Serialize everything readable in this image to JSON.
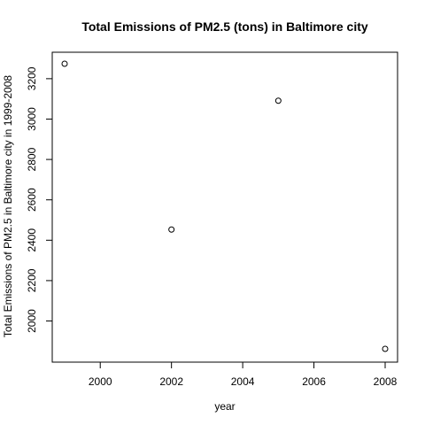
{
  "chart_data": {
    "type": "scatter",
    "title": "Total Emissions of PM2.5 (tons) in Baltimore city",
    "xlabel": "year",
    "ylabel": "Total Emissions of PM2.5 in Baltimore city in 1999-2008",
    "xlim": [
      1998.88,
      2008.12
    ],
    "ylim": [
      1862,
      3274
    ],
    "xticks": [
      2000,
      2002,
      2004,
      2006,
      2008
    ],
    "yticks": [
      2000,
      2200,
      2400,
      2600,
      2800,
      3000,
      3200
    ],
    "grid": false,
    "legend": "none",
    "marker": "open-circle",
    "x": [
      1999,
      2002,
      2005,
      2008
    ],
    "y": [
      3274,
      2453,
      3091,
      1862
    ]
  }
}
